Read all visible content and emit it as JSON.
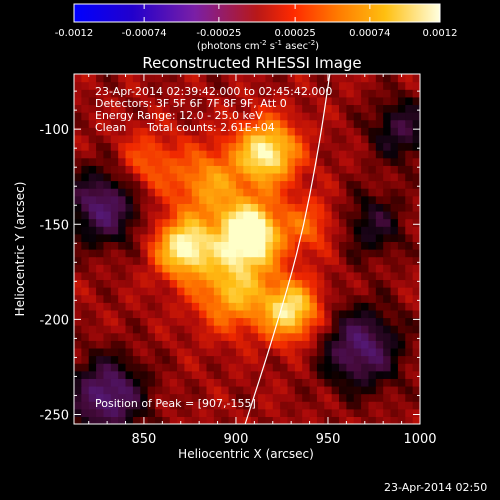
{
  "chart_data": {
    "type": "heatmap",
    "title": "Reconstructed RHESSI Image",
    "xlabel": "Heliocentric X (arcsec)",
    "ylabel": "Heliocentric Y (arcsec)",
    "xlim": [
      812,
      1000
    ],
    "ylim": [
      -255,
      -71
    ],
    "xticks": [
      850,
      900,
      950,
      1000
    ],
    "yticks": [
      -100,
      -150,
      -200,
      -250
    ],
    "colorbar": {
      "min": -0.0012,
      "max": 0.0012,
      "ticks": [
        "-0.0012",
        "-0.00074",
        "-0.00025",
        "0.00025",
        "0.00074",
        "0.0012"
      ],
      "tick_values": [
        -0.0012,
        -0.00074,
        -0.00025,
        0.00025,
        0.00074,
        0.0012
      ],
      "label_base": "(photons cm",
      "label_exp1": "-2",
      "label_mid": " s",
      "label_exp2": "-1",
      "label_end": " asec",
      "label_exp3": "-2",
      "label_close": ")"
    },
    "sources": [
      {
        "x": 907,
        "y": -155,
        "intensity": 1.0,
        "sigma": 12
      },
      {
        "x": 872,
        "y": -162,
        "intensity": 0.8,
        "sigma": 11
      },
      {
        "x": 917,
        "y": -112,
        "intensity": 0.78,
        "sigma": 12
      },
      {
        "x": 930,
        "y": -195,
        "intensity": 0.72,
        "sigma": 11
      },
      {
        "x": 898,
        "y": -185,
        "intensity": 0.55,
        "sigma": 14
      },
      {
        "x": 885,
        "y": -128,
        "intensity": 0.45,
        "sigma": 13
      },
      {
        "x": 852,
        "y": -118,
        "intensity": 0.3,
        "sigma": 12
      },
      {
        "x": 940,
        "y": -150,
        "intensity": 0.3,
        "sigma": 10
      }
    ],
    "negative_regions": [
      {
        "x": 828,
        "y": -140,
        "intensity": -0.5,
        "sigma": 14
      },
      {
        "x": 830,
        "y": -240,
        "intensity": -0.55,
        "sigma": 14
      },
      {
        "x": 968,
        "y": -215,
        "intensity": -0.5,
        "sigma": 15
      },
      {
        "x": 990,
        "y": -100,
        "intensity": -0.35,
        "sigma": 12
      },
      {
        "x": 975,
        "y": -150,
        "intensity": -0.3,
        "sigma": 12
      }
    ],
    "limb_curve": [
      [
        951,
        -71
      ],
      [
        945,
        -110
      ],
      [
        935,
        -160
      ],
      [
        920,
        -210
      ],
      [
        905,
        -255
      ]
    ],
    "peak": [
      907,
      -155
    ]
  },
  "annotations": {
    "time_range": "23-Apr-2014 02:39:42.000 to 02:45:42.000",
    "detectors": "Detectors: 3F 5F 6F 7F 8F 9F, Att 0",
    "energy": "Energy Range: 12.0 - 25.0 keV",
    "clean": "Clean",
    "total_counts": "Total counts: 2.61E+04",
    "peak_position": "Position of Peak = [907,-155]"
  },
  "footer": {
    "timestamp": "23-Apr-2014 02:50"
  }
}
